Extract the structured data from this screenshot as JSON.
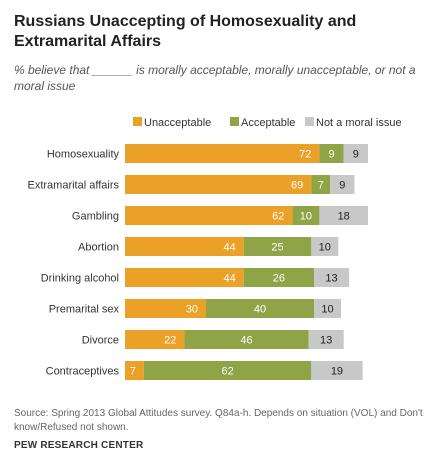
{
  "title": "Russians Unaccepting of Homosexuality and Extramarital Affairs",
  "subtitle": "% believe that ______ is morally acceptable, morally unacceptable, or not a moral issue",
  "colors": {
    "unacceptable": "#eba027",
    "acceptable": "#8fa347",
    "not_moral": "#c8c8c8"
  },
  "chart_data": {
    "type": "bar",
    "orientation": "horizontal",
    "stacked": true,
    "title": "Russians Unaccepting of Homosexuality and Extramarital Affairs",
    "xlabel": "",
    "ylabel": "",
    "xlim": [
      0,
      100
    ],
    "legend_position": "top",
    "categories": [
      "Homosexuality",
      "Extramarital affairs",
      "Gambling",
      "Abortion",
      "Drinking alcohol",
      "Premarital sex",
      "Divorce",
      "Contraceptives"
    ],
    "series": [
      {
        "name": "Unacceptable",
        "color": "#eba027",
        "values": [
          72,
          69,
          62,
          44,
          44,
          30,
          22,
          7
        ]
      },
      {
        "name": "Acceptable",
        "color": "#8fa347",
        "values": [
          9,
          7,
          10,
          25,
          26,
          40,
          46,
          62
        ]
      },
      {
        "name": "Not a moral issue",
        "color": "#c8c8c8",
        "values": [
          9,
          9,
          18,
          10,
          13,
          10,
          13,
          19
        ]
      }
    ]
  },
  "footer": {
    "source": "Source: Spring 2013 Global Attitudes survey. Q84a-h. Depends on situation (VOL) and Don't know/Refused not shown.",
    "org": "PEW RESEARCH CENTER"
  }
}
